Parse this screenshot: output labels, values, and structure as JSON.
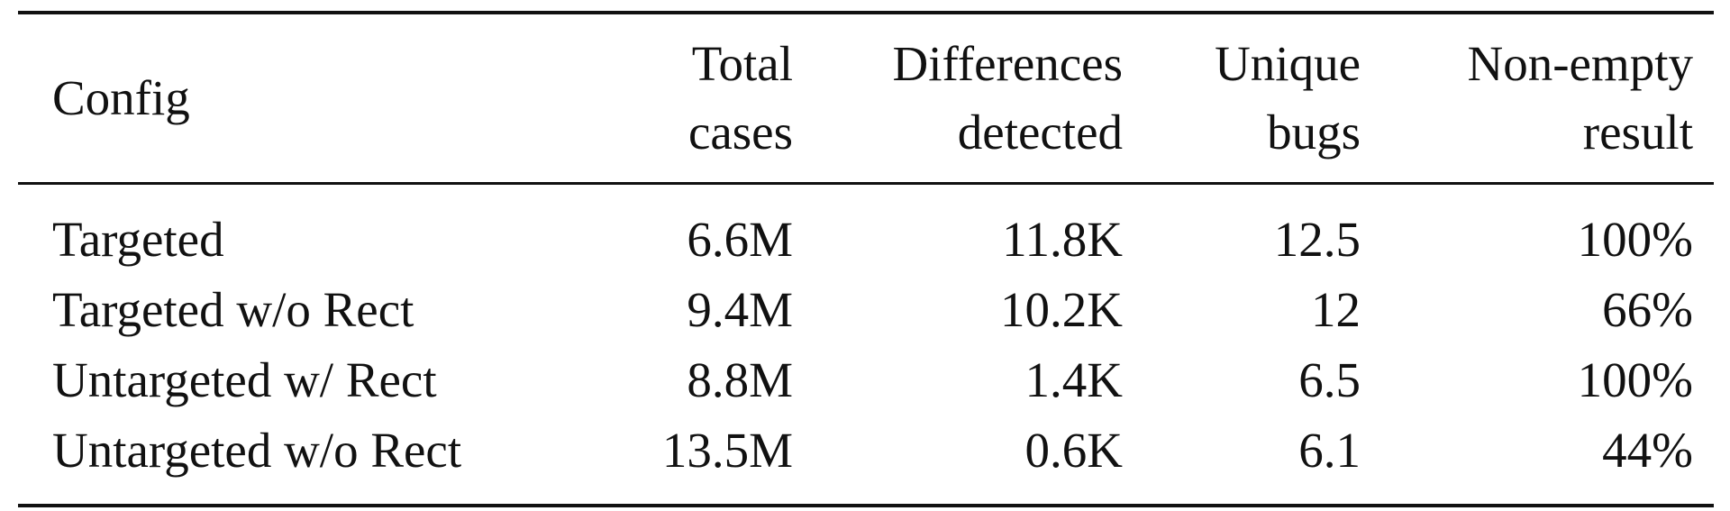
{
  "table": {
    "headers": [
      {
        "lines": [
          "Config"
        ]
      },
      {
        "lines": [
          "Total",
          "cases"
        ]
      },
      {
        "lines": [
          "Differences",
          "detected"
        ]
      },
      {
        "lines": [
          "Unique",
          "bugs"
        ]
      },
      {
        "lines": [
          "Non-empty",
          "result"
        ]
      }
    ],
    "rows": [
      [
        "Targeted",
        "6.6M",
        "11.8K",
        "12.5",
        "100%"
      ],
      [
        "Targeted w/o Rect",
        "9.4M",
        "10.2K",
        "12",
        "66%"
      ],
      [
        "Untargeted w/ Rect",
        "8.8M",
        "1.4K",
        "6.5",
        "100%"
      ],
      [
        "Untargeted w/o Rect",
        "13.5M",
        "0.6K",
        "6.1",
        "44%"
      ]
    ]
  }
}
